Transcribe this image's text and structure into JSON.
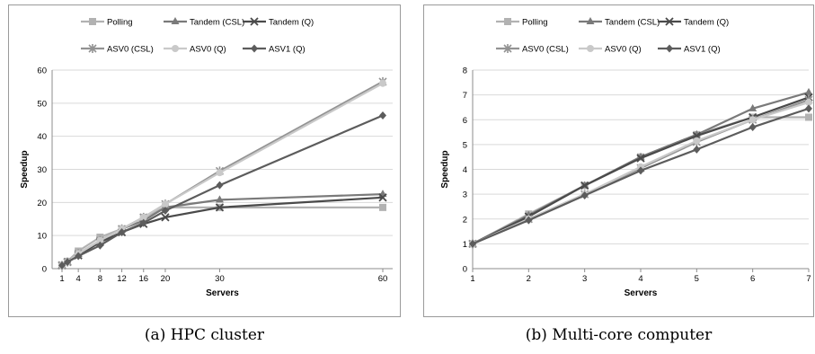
{
  "captions": {
    "a": "(a) HPC cluster",
    "b": "(b) Multi-core computer"
  },
  "legend": [
    {
      "name": "Polling",
      "color": "#b2b2b2",
      "marker": "square"
    },
    {
      "name": "Tandem (CSL)",
      "color": "#7a7a7a",
      "marker": "triangle"
    },
    {
      "name": "Tandem (Q)",
      "color": "#4a4a4a",
      "marker": "x"
    },
    {
      "name": "ASV0 (CSL)",
      "color": "#939393",
      "marker": "star"
    },
    {
      "name": "ASV0 (Q)",
      "color": "#c9c9c9",
      "marker": "circle"
    },
    {
      "name": "ASV1 (Q)",
      "color": "#5c5c5c",
      "marker": "diamond"
    }
  ],
  "chart_data": [
    {
      "type": "line",
      "xlabel": "Servers",
      "ylabel": "Speedup",
      "x_scale": "categorical-proportional",
      "x": [
        1,
        2,
        4,
        8,
        12,
        16,
        20,
        30,
        60
      ],
      "x_ticks": [
        1,
        4,
        8,
        12,
        16,
        20,
        30,
        60
      ],
      "ylim": [
        0,
        60
      ],
      "y_ticks": [
        0,
        10,
        20,
        30,
        40,
        50,
        60
      ],
      "series": [
        {
          "name": "Polling",
          "values": [
            1,
            2.2,
            5.3,
            9.5,
            12,
            15.5,
            18.5,
            18.5,
            18.5
          ]
        },
        {
          "name": "Tandem (CSL)",
          "values": [
            1,
            2,
            4.5,
            8.5,
            12,
            14.5,
            18.5,
            20.8,
            22.5
          ]
        },
        {
          "name": "Tandem (Q)",
          "values": [
            1,
            2,
            4,
            8,
            11,
            13.5,
            15.5,
            18.5,
            21.5
          ]
        },
        {
          "name": "ASV0 (CSL)",
          "values": [
            1,
            2,
            4.5,
            8.5,
            12,
            15.5,
            19.5,
            29.5,
            56.5
          ]
        },
        {
          "name": "ASV0 (Q)",
          "values": [
            1,
            2,
            4.5,
            8.5,
            12,
            15.5,
            19.5,
            29,
            56
          ]
        },
        {
          "name": "ASV1 (Q)",
          "values": [
            1,
            2,
            3.8,
            7,
            11,
            13.8,
            17.5,
            25.2,
            46.3
          ]
        }
      ]
    },
    {
      "type": "line",
      "xlabel": "Servers",
      "ylabel": "Speedup",
      "x": [
        1,
        2,
        3,
        4,
        5,
        6,
        7
      ],
      "x_ticks": [
        1,
        2,
        3,
        4,
        5,
        6,
        7
      ],
      "ylim": [
        0,
        8
      ],
      "y_ticks": [
        0,
        1,
        2,
        3,
        4,
        5,
        6,
        7,
        8
      ],
      "series": [
        {
          "name": "Polling",
          "values": [
            1,
            2.2,
            3.35,
            4.5,
            5.4,
            6.1,
            6.1
          ]
        },
        {
          "name": "Tandem (CSL)",
          "values": [
            1,
            2.15,
            3.35,
            4.5,
            5.4,
            6.45,
            7.1
          ]
        },
        {
          "name": "Tandem (Q)",
          "values": [
            1,
            2.1,
            3.35,
            4.45,
            5.35,
            6.1,
            6.9
          ]
        },
        {
          "name": "ASV0 (CSL)",
          "values": [
            1,
            2,
            3,
            4.05,
            5.1,
            6,
            6.8
          ]
        },
        {
          "name": "ASV0 (Q)",
          "values": [
            1,
            2,
            3,
            4.1,
            5.15,
            6,
            6.7
          ]
        },
        {
          "name": "ASV1 (Q)",
          "values": [
            1,
            1.95,
            2.95,
            3.95,
            4.8,
            5.7,
            6.45
          ]
        }
      ]
    }
  ]
}
